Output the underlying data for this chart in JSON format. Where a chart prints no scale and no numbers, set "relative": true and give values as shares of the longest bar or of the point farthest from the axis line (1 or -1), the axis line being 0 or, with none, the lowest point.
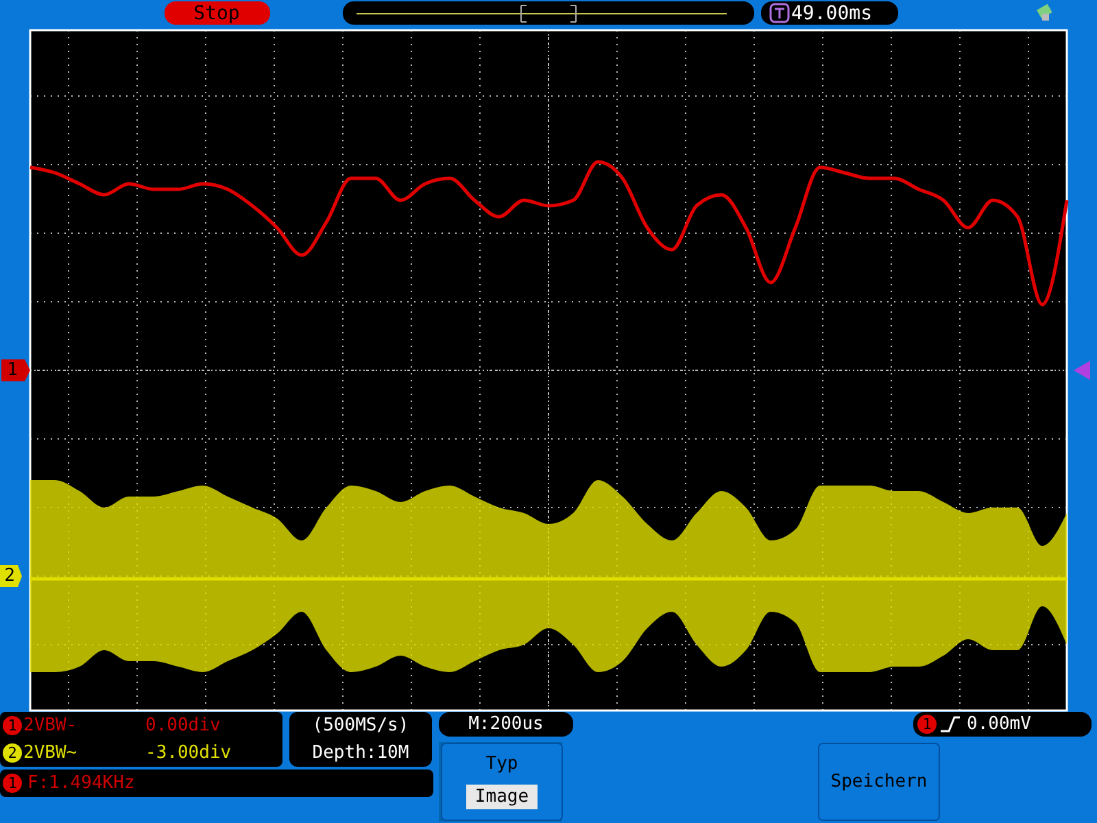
{
  "chart_data": {
    "type": "line",
    "relative": true,
    "grid": true,
    "categories": [
      null,
      null,
      null,
      null,
      null,
      null,
      null,
      null,
      null,
      null,
      null,
      null,
      null,
      null,
      null,
      null,
      null,
      null,
      null,
      null,
      null,
      null,
      null,
      null,
      null,
      null,
      null,
      null,
      null,
      null,
      null,
      null,
      null,
      null,
      null,
      null,
      null,
      null,
      null,
      null,
      null,
      null,
      null
    ],
    "series": [
      {
        "color": "#e00000",
        "values": [
          0.99,
          0.98,
          0.96,
          0.94,
          0.96,
          0.95,
          0.95,
          0.96,
          0.95,
          0.92,
          0.88,
          0.83,
          0.89,
          0.97,
          0.97,
          0.93,
          0.96,
          0.97,
          0.93,
          0.9,
          0.93,
          0.92,
          0.93,
          1.0,
          0.97,
          0.88,
          0.84,
          0.92,
          0.94,
          0.88,
          0.78,
          0.88,
          0.99,
          0.98,
          0.97,
          0.97,
          0.95,
          0.93,
          0.88,
          0.93,
          0.9,
          0.74,
          0.93
        ]
      },
      {
        "color": "#e0e000",
        "values": [
          0.24,
          0.24,
          0.24,
          0.24,
          0.24,
          0.24,
          0.24,
          0.24,
          0.24,
          0.24,
          0.24,
          0.24,
          0.24,
          0.24,
          0.24,
          0.24,
          0.24,
          0.24,
          0.24,
          0.24,
          0.24,
          0.24,
          0.24,
          0.24,
          0.24,
          0.24,
          0.24,
          0.24,
          0.24,
          0.24,
          0.24,
          0.24,
          0.24,
          0.24,
          0.24,
          0.24,
          0.24,
          0.24,
          0.24,
          0.24,
          0.24,
          0.24,
          0.24
        ],
        "upper": [
          0.42,
          0.42,
          0.4,
          0.37,
          0.39,
          0.39,
          0.4,
          0.41,
          0.39,
          0.37,
          0.35,
          0.31,
          0.37,
          0.41,
          0.4,
          0.38,
          0.4,
          0.41,
          0.39,
          0.37,
          0.36,
          0.34,
          0.36,
          0.42,
          0.39,
          0.34,
          0.31,
          0.36,
          0.4,
          0.37,
          0.31,
          0.33,
          0.41,
          0.41,
          0.41,
          0.4,
          0.4,
          0.38,
          0.36,
          0.37,
          0.37,
          0.3,
          0.36
        ],
        "lower": [
          0.07,
          0.07,
          0.08,
          0.11,
          0.09,
          0.09,
          0.08,
          0.07,
          0.09,
          0.11,
          0.14,
          0.18,
          0.11,
          0.07,
          0.08,
          0.1,
          0.08,
          0.07,
          0.09,
          0.11,
          0.12,
          0.15,
          0.12,
          0.07,
          0.09,
          0.15,
          0.18,
          0.12,
          0.08,
          0.11,
          0.18,
          0.16,
          0.07,
          0.07,
          0.07,
          0.08,
          0.08,
          0.1,
          0.13,
          0.11,
          0.11,
          0.19,
          0.12
        ]
      }
    ],
    "annotations": [
      "Stop",
      "49.00ms",
      "1",
      "2",
      "2VBW-",
      "0.00div",
      "2VBW~",
      "-3.00div",
      "(500MS/s)",
      "Depth:10M",
      "M:200us",
      "F:1.494KHz",
      "0.00mV",
      "Typ",
      "Image",
      "Speichern"
    ]
  }
}
